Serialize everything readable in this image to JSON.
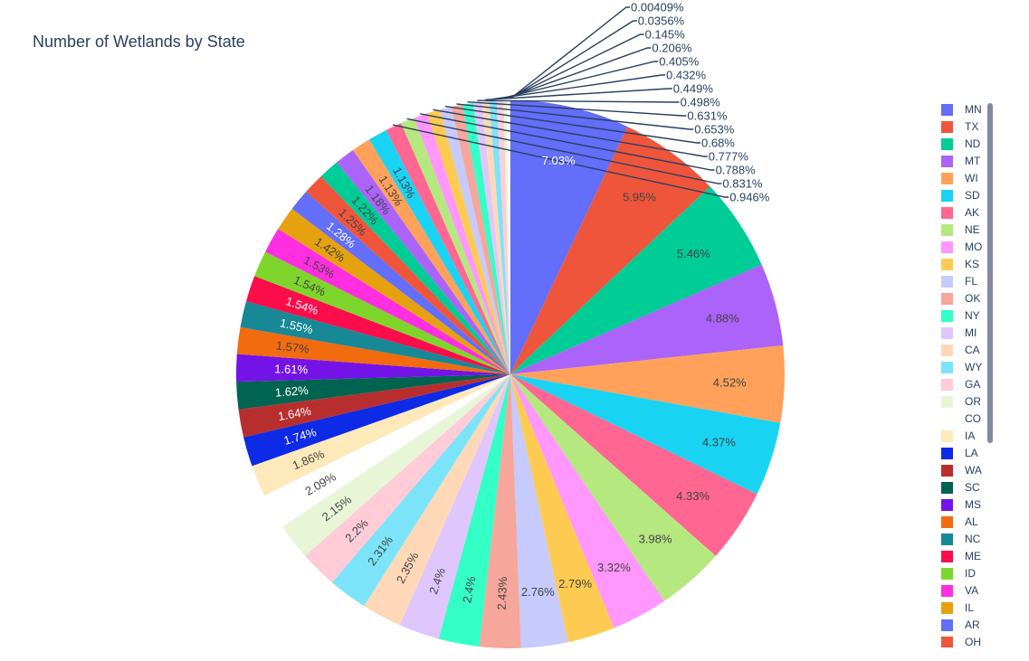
{
  "chart_data": {
    "type": "pie",
    "title": "Number of Wetlands by State",
    "legend_position": "right",
    "slices": [
      {
        "label": "MN",
        "pct": 7.03,
        "pct_label": "7.03%",
        "color": "#636EFA"
      },
      {
        "label": "TX",
        "pct": 5.95,
        "pct_label": "5.95%",
        "color": "#EF553B"
      },
      {
        "label": "ND",
        "pct": 5.46,
        "pct_label": "5.46%",
        "color": "#00CC96"
      },
      {
        "label": "MT",
        "pct": 4.88,
        "pct_label": "4.88%",
        "color": "#AB63FA"
      },
      {
        "label": "WI",
        "pct": 4.52,
        "pct_label": "4.52%",
        "color": "#FFA15A"
      },
      {
        "label": "SD",
        "pct": 4.37,
        "pct_label": "4.37%",
        "color": "#19D3F3"
      },
      {
        "label": "AK",
        "pct": 4.33,
        "pct_label": "4.33%",
        "color": "#FF6692"
      },
      {
        "label": "NE",
        "pct": 3.98,
        "pct_label": "3.98%",
        "color": "#B6E880"
      },
      {
        "label": "MO",
        "pct": 3.32,
        "pct_label": "3.32%",
        "color": "#FF97FF"
      },
      {
        "label": "KS",
        "pct": 2.79,
        "pct_label": "2.79%",
        "color": "#FECB52"
      },
      {
        "label": "FL",
        "pct": 2.76,
        "pct_label": "2.76%",
        "color": "#C6CAFD"
      },
      {
        "label": "OK",
        "pct": 2.43,
        "pct_label": "2.43%",
        "color": "#F6A69A"
      },
      {
        "label": "NY",
        "pct": 2.4,
        "pct_label": "2.4%",
        "color": "#33FFC7"
      },
      {
        "label": "MI",
        "pct": 2.4,
        "pct_label": "2.4%",
        "color": "#DFC6FD"
      },
      {
        "label": "CA",
        "pct": 2.35,
        "pct_label": "2.35%",
        "color": "#FFD8B8"
      },
      {
        "label": "WY",
        "pct": 2.31,
        "pct_label": "2.31%",
        "color": "#7CE4F8"
      },
      {
        "label": "GA",
        "pct": 2.2,
        "pct_label": "2.2%",
        "color": "#FFCCD8"
      },
      {
        "label": "OR",
        "pct": 2.15,
        "pct_label": "2.15%",
        "color": "#E8F6D7"
      },
      {
        "label": "CO",
        "pct": 2.09,
        "pct_label": "2.09%",
        "color": "#FFFFFF"
      },
      {
        "label": "IA",
        "pct": 1.86,
        "pct_label": "1.86%",
        "color": "#FEE9BA"
      },
      {
        "label": "LA",
        "pct": 1.74,
        "pct_label": "1.74%",
        "color": "#0D2AE6"
      },
      {
        "label": "WA",
        "pct": 1.64,
        "pct_label": "1.64%",
        "color": "#B82E2E"
      },
      {
        "label": "SC",
        "pct": 1.62,
        "pct_label": "1.62%",
        "color": "#006450"
      },
      {
        "label": "MS",
        "pct": 1.61,
        "pct_label": "1.61%",
        "color": "#7413E8"
      },
      {
        "label": "AL",
        "pct": 1.57,
        "pct_label": "1.57%",
        "color": "#F26B0F"
      },
      {
        "label": "NC",
        "pct": 1.55,
        "pct_label": "1.55%",
        "color": "#168896"
      },
      {
        "label": "ME",
        "pct": 1.54,
        "pct_label": "1.54%",
        "color": "#FB0D4B"
      },
      {
        "label": "ID",
        "pct": 1.54,
        "pct_label": "1.54%",
        "color": "#7ED62C"
      },
      {
        "label": "VA",
        "pct": 1.53,
        "pct_label": "1.53%",
        "color": "#FF2EE0"
      },
      {
        "label": "IL",
        "pct": 1.42,
        "pct_label": "1.42%",
        "color": "#E6A10F"
      },
      {
        "label": "AR",
        "pct": 1.28,
        "pct_label": "1.28%",
        "color": "#636EFA"
      },
      {
        "label": "OH",
        "pct": 1.25,
        "pct_label": "1.25%",
        "color": "#EF553B"
      },
      {
        "label": "",
        "pct": 1.22,
        "pct_label": "1.22%",
        "color": "#00CC96"
      },
      {
        "label": "",
        "pct": 1.18,
        "pct_label": "1.18%",
        "color": "#AB63FA"
      },
      {
        "label": "",
        "pct": 1.13,
        "pct_label": "1.13%",
        "color": "#FFA15A"
      },
      {
        "label": "",
        "pct": 1.13,
        "pct_label": "1.13%",
        "color": "#19D3F3"
      },
      {
        "label": "",
        "pct": 0.946,
        "pct_label": "0.946%",
        "color": "#FF6692"
      },
      {
        "label": "",
        "pct": 0.831,
        "pct_label": "0.831%",
        "color": "#B6E880"
      },
      {
        "label": "",
        "pct": 0.788,
        "pct_label": "0.788%",
        "color": "#FF97FF"
      },
      {
        "label": "",
        "pct": 0.777,
        "pct_label": "0.777%",
        "color": "#FECB52"
      },
      {
        "label": "",
        "pct": 0.68,
        "pct_label": "0.68%",
        "color": "#C6CAFD"
      },
      {
        "label": "",
        "pct": 0.653,
        "pct_label": "0.653%",
        "color": "#F6A69A"
      },
      {
        "label": "",
        "pct": 0.631,
        "pct_label": "0.631%",
        "color": "#33FFC7"
      },
      {
        "label": "",
        "pct": 0.498,
        "pct_label": "0.498%",
        "color": "#DFC6FD"
      },
      {
        "label": "",
        "pct": 0.449,
        "pct_label": "0.449%",
        "color": "#FFD8B8"
      },
      {
        "label": "",
        "pct": 0.432,
        "pct_label": "0.432%",
        "color": "#7CE4F8"
      },
      {
        "label": "",
        "pct": 0.405,
        "pct_label": "0.405%",
        "color": "#FFCCD8"
      },
      {
        "label": "",
        "pct": 0.206,
        "pct_label": "0.206%",
        "color": "#E8F6D7"
      },
      {
        "label": "",
        "pct": 0.145,
        "pct_label": "0.145%",
        "color": "#FFFFFF"
      },
      {
        "label": "",
        "pct": 0.0356,
        "pct_label": "0.0356%",
        "color": "#FEE9BA"
      },
      {
        "label": "",
        "pct": 0.00409,
        "pct_label": "0.00409%",
        "color": "#0D2AE6"
      }
    ]
  }
}
